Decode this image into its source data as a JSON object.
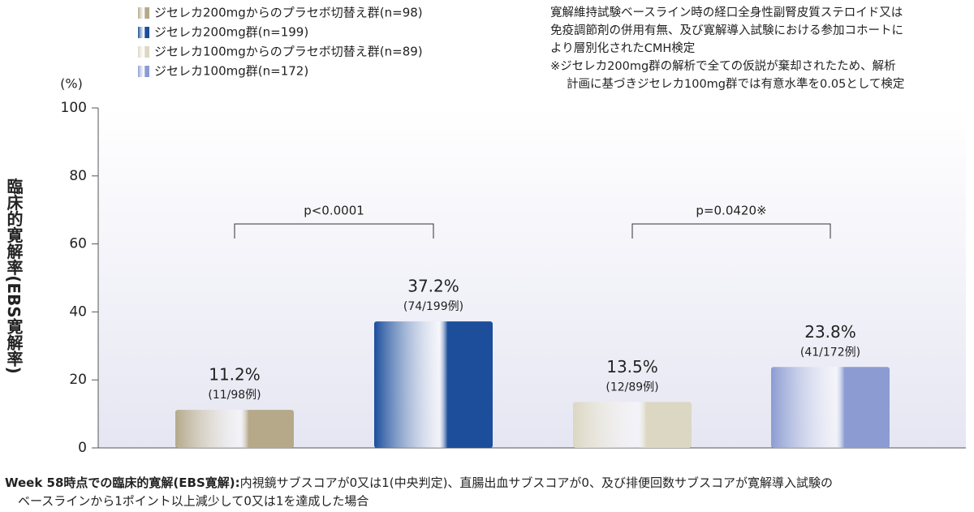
{
  "chart_data": {
    "type": "bar",
    "legend": [
      {
        "name": "ジセレカ200mgからのプラセボ切替え群(n=98)",
        "color": "#b5a98a"
      },
      {
        "name": "ジセレカ200mg群(n=199)",
        "color": "#1c4e9b"
      },
      {
        "name": "ジセレカ100mgからのプラセボ切替え群(n=89)",
        "color": "#dcd7c3"
      },
      {
        "name": "ジセレカ100mg群(n=172)",
        "color": "#8c9cd2"
      }
    ],
    "categories": [
      null,
      null,
      null,
      null
    ],
    "values": [
      11.2,
      37.2,
      13.5,
      23.8
    ],
    "value_labels": [
      "11.2%",
      "37.2%",
      "13.5%",
      "23.8%"
    ],
    "counts": [
      "(11/98例)",
      "(74/199例)",
      "(12/89例)",
      "(41/172例)"
    ],
    "comparisons": [
      "p<0.0001",
      "p=0.0420※"
    ],
    "y_unit": "(%)",
    "y_label": "臨床的寛解率(EBS寛解率)",
    "ylim": [
      0,
      100
    ],
    "yticks": [
      0,
      20,
      40,
      60,
      80,
      100
    ],
    "note": [
      "寛解維持試験ベースライン時の経口全身性副腎皮質ステロイド又は",
      "免疫調節剤の併用有無、及び寛解導入試験における参加コホートに",
      "より層別化されたCMH検定",
      "※ジセレカ200mg群の解析で全ての仮説が棄却されたため、解析",
      "計画に基づきジセレカ100mg群では有意水準を0.05として検定"
    ],
    "footnote_title": "Week 58時点での臨床的寛解(EBS寛解):",
    "footnote": [
      "内視鏡サブスコアが0又は1(中央判定)、直腸出血サブスコアが0、及び排便回数サブスコアが寛解導入試験の",
      "ベースラインから1ポイント以上減少して0又は1を達成した場合"
    ]
  }
}
